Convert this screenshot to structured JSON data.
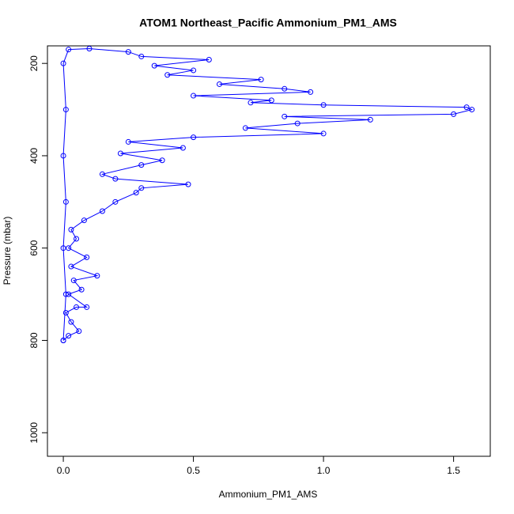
{
  "chart_data": {
    "type": "line",
    "title": "ATOM1 Northeast_Pacific Ammonium_PM1_AMS",
    "x_label": "Ammonium_PM1_AMS",
    "y_label": "Pressure (mbar)",
    "xlim": [
      -0.061,
      1.641
    ],
    "ylim": [
      1051,
      162
    ],
    "xticks": [
      {
        "value": 0,
        "label": "0.0"
      },
      {
        "value": 0.5,
        "label": "0.5"
      },
      {
        "value": 1,
        "label": "1.0"
      },
      {
        "value": 1.5,
        "label": "1.5"
      }
    ],
    "yticks": [
      200,
      400,
      600,
      800,
      1000
    ],
    "markers": true,
    "series": [
      {
        "color": "#0000ff",
        "x": [
          0.0,
          0.02,
          0.06,
          0.03,
          0.01,
          0.05,
          0.09,
          0.02,
          0.07,
          0.04,
          0.13,
          0.03,
          0.09,
          0.02,
          0.05,
          0.03,
          0.08,
          0.15,
          0.2,
          0.28,
          0.3,
          0.48,
          0.2,
          0.15,
          0.3,
          0.38,
          0.22,
          0.46,
          0.25,
          0.5,
          1.0,
          0.7,
          0.9,
          1.18,
          0.85,
          1.5,
          1.57,
          1.55,
          1.0,
          0.72,
          0.8,
          0.5,
          0.95,
          0.85,
          0.6,
          0.76,
          0.4,
          0.5,
          0.35,
          0.56,
          0.3,
          0.25,
          0.1,
          0.02,
          0.0,
          0.01,
          0.0,
          0.01,
          0.0,
          0.01,
          0.0
        ],
        "values": [
          800,
          790,
          780,
          760,
          740,
          728,
          728,
          700,
          690,
          670,
          660,
          640,
          620,
          600,
          580,
          560,
          540,
          520,
          500,
          480,
          470,
          462,
          450,
          440,
          420,
          410,
          395,
          383,
          370,
          360,
          352,
          340,
          330,
          322,
          315,
          310,
          300,
          295,
          290,
          285,
          280,
          270,
          262,
          255,
          245,
          235,
          225,
          215,
          205,
          192,
          185,
          175,
          168,
          170,
          200,
          300,
          400,
          500,
          600,
          700,
          800
        ]
      }
    ]
  }
}
